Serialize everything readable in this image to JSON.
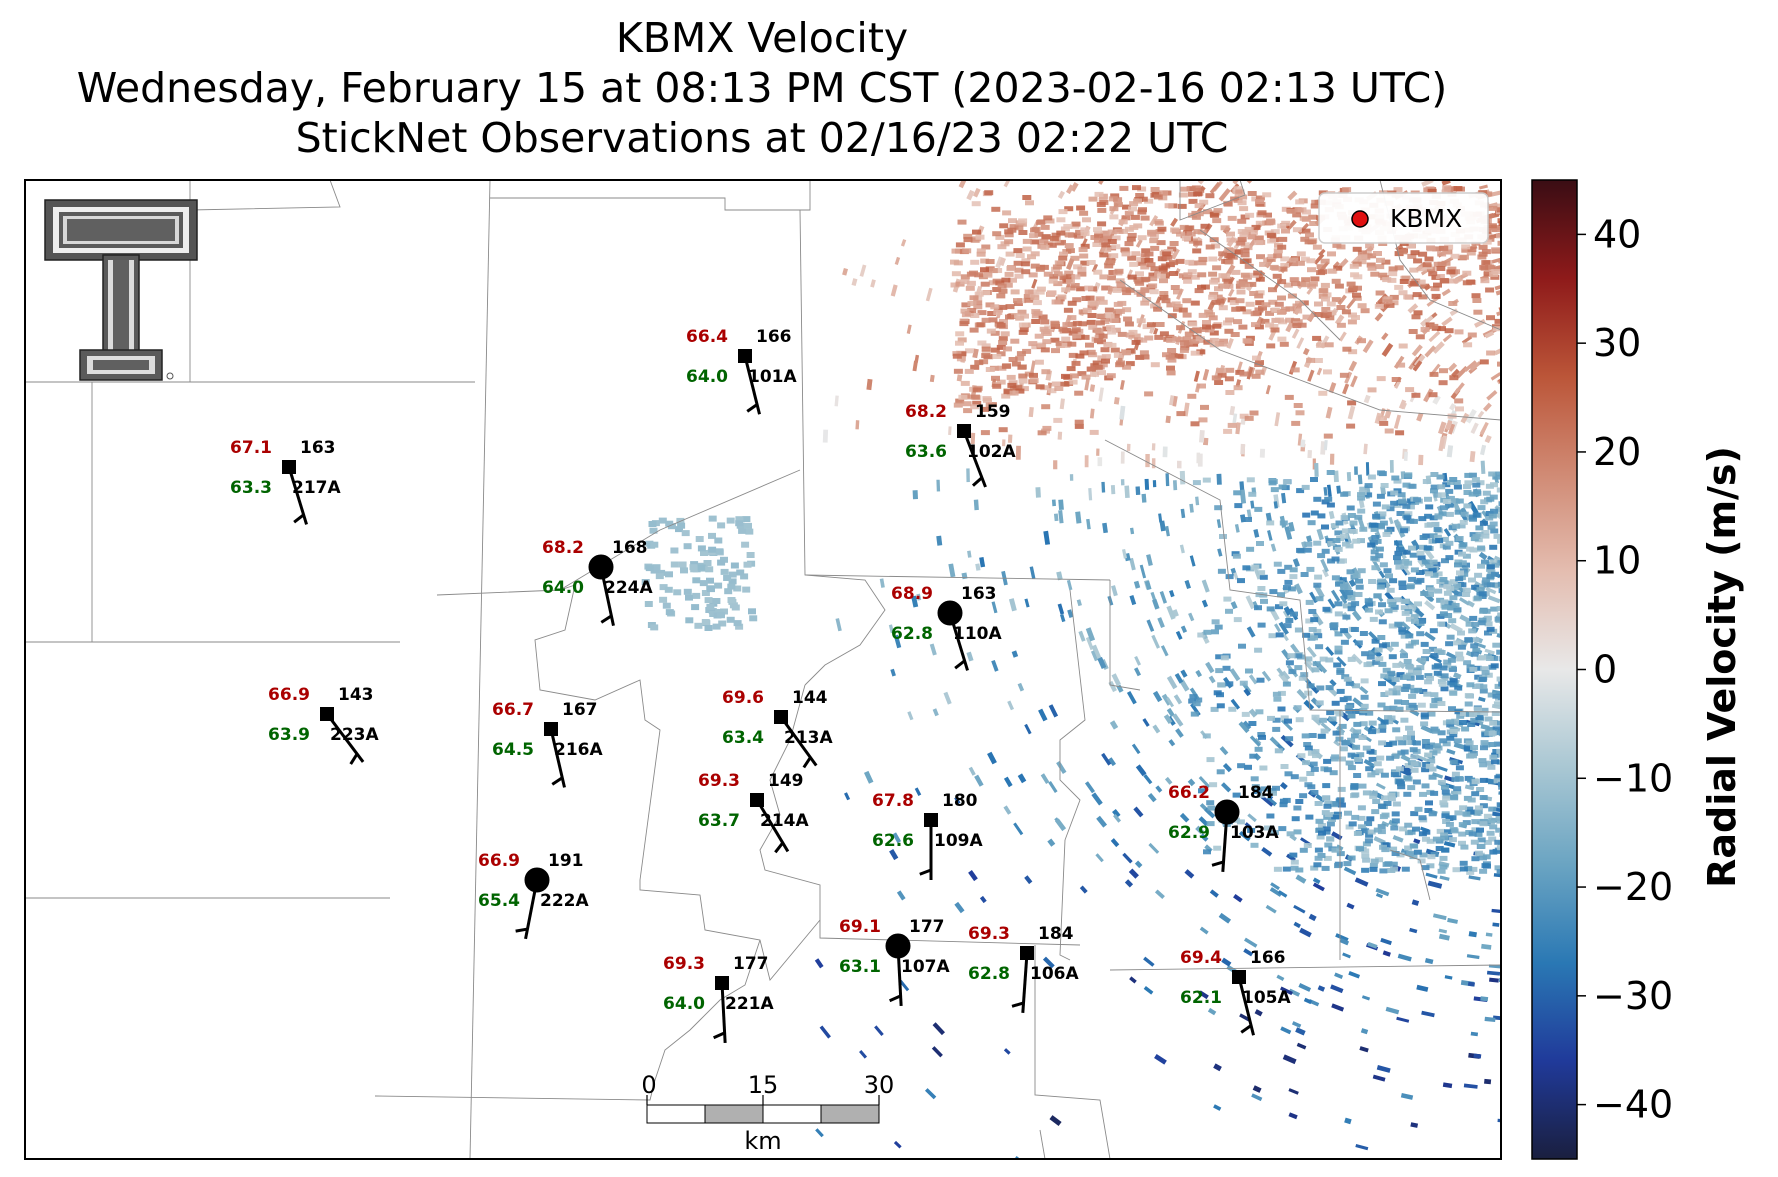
{
  "title": {
    "line1": "KBMX Velocity",
    "line2": "Wednesday, February 15 at 08:13 PM CST (2023-02-16 02:13 UTC)",
    "line3": "StickNet Observations at 02/16/23 02:22 UTC"
  },
  "legend": {
    "label": "KBMX",
    "marker_color": "#e01010"
  },
  "colorbar": {
    "label": "Radial Velocity (m/s)",
    "ticks": [
      "40",
      "30",
      "20",
      "10",
      "0",
      "−10",
      "−20",
      "−30",
      "−40"
    ],
    "tick_values": [
      40,
      30,
      20,
      10,
      0,
      -10,
      -20,
      -30,
      -40
    ],
    "range": [
      -45,
      45
    ],
    "colors": [
      "#1a1f3f",
      "#203a9a",
      "#2a78b4",
      "#6aa4c2",
      "#a9c7d3",
      "#e8e8e8",
      "#e4bdb0",
      "#d08a74",
      "#bb5538",
      "#8e1a1a",
      "#3a0d14"
    ]
  },
  "scalebar": {
    "ticks": [
      "0",
      "15",
      "30"
    ],
    "unit": "km"
  },
  "colors": {
    "temperature": "#aa0000",
    "dewpoint": "#006400",
    "label": "#000000"
  },
  "stations": [
    {
      "id": "101A",
      "temp": "66.4",
      "dew": "64.0",
      "dir": "166",
      "marker": "square"
    },
    {
      "id": "102A",
      "temp": "68.2",
      "dew": "63.6",
      "dir": "159",
      "marker": "square"
    },
    {
      "id": "217A",
      "temp": "67.1",
      "dew": "63.3",
      "dir": "163",
      "marker": "square"
    },
    {
      "id": "224A",
      "temp": "68.2",
      "dew": "64.0",
      "dir": "168",
      "marker": "circle"
    },
    {
      "id": "110A",
      "temp": "68.9",
      "dew": "62.8",
      "dir": "163",
      "marker": "circle"
    },
    {
      "id": "223A",
      "temp": "66.9",
      "dew": "63.9",
      "dir": "143",
      "marker": "square"
    },
    {
      "id": "216A",
      "temp": "66.7",
      "dew": "64.5",
      "dir": "167",
      "marker": "square"
    },
    {
      "id": "213A",
      "temp": "69.6",
      "dew": "63.4",
      "dir": "144",
      "marker": "square"
    },
    {
      "id": "214A",
      "temp": "69.3",
      "dew": "63.7",
      "dir": "149",
      "marker": "square"
    },
    {
      "id": "109A",
      "temp": "67.8",
      "dew": "62.6",
      "dir": "180",
      "marker": "square"
    },
    {
      "id": "103A",
      "temp": "66.2",
      "dew": "62.9",
      "dir": "184",
      "marker": "circle"
    },
    {
      "id": "222A",
      "temp": "66.9",
      "dew": "65.4",
      "dir": "191",
      "marker": "circle"
    },
    {
      "id": "107A",
      "temp": "69.1",
      "dew": "63.1",
      "dir": "177",
      "marker": "circle"
    },
    {
      "id": "106A",
      "temp": "69.3",
      "dew": "62.8",
      "dir": "184",
      "marker": "square"
    },
    {
      "id": "221A",
      "temp": "69.3",
      "dew": "64.0",
      "dir": "177",
      "marker": "square"
    },
    {
      "id": "105A",
      "temp": "69.4",
      "dew": "62.1",
      "dir": "166",
      "marker": "square"
    }
  ]
}
